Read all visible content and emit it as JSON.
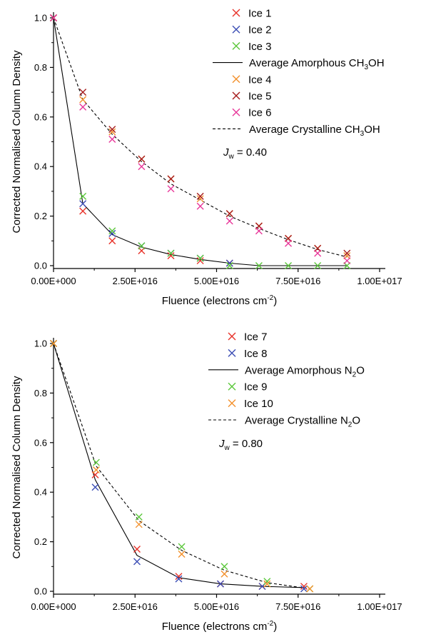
{
  "chart_data": [
    {
      "type": "scatter",
      "xlabel": "Fluence (electrons cm",
      "xlabel_sup": "-2",
      "xlabel_end": ")",
      "ylabel": "Corrected Normalised Column Density",
      "xlim": [
        0,
        1e+17
      ],
      "ylim": [
        0,
        1.0
      ],
      "x_ticks": [
        0,
        2.5e+16,
        5e+16,
        7.5e+16,
        1e+17
      ],
      "x_tick_labels": [
        "0.00E+000",
        "2.50E+016",
        "5.00E+016",
        "7.50E+016",
        "1.00E+017"
      ],
      "y_ticks": [
        0.0,
        0.2,
        0.4,
        0.6,
        0.8,
        1.0
      ],
      "y_tick_labels": [
        "0.0",
        "0.2",
        "0.4",
        "0.6",
        "0.8",
        "1.0"
      ],
      "grid": false,
      "legend_position": "top-right",
      "annotation": {
        "symbol": "J",
        "sub": "w",
        "text": " = 0.40"
      },
      "legend": [
        {
          "kind": "marker",
          "series": 0
        },
        {
          "kind": "marker",
          "series": 1
        },
        {
          "kind": "marker",
          "series": 2
        },
        {
          "kind": "line",
          "series": 6
        },
        {
          "kind": "marker",
          "series": 3
        },
        {
          "kind": "marker",
          "series": 4
        },
        {
          "kind": "marker",
          "series": 5
        },
        {
          "kind": "line",
          "series": 7
        }
      ],
      "series": [
        {
          "name": "Ice 1",
          "kind": "scatter",
          "color": "#e8332a",
          "x": [
            0,
            9000000000000000.0,
            1.8e+16,
            2.7e+16,
            3.6e+16,
            4.5e+16,
            5.4e+16
          ],
          "y": [
            1.0,
            0.22,
            0.1,
            0.06,
            0.04,
            0.02,
            0.01
          ]
        },
        {
          "name": "Ice 2",
          "kind": "scatter",
          "color": "#3d4fb5",
          "x": [
            0,
            9000000000000000.0,
            1.8e+16,
            2.7e+16,
            3.6e+16,
            4.5e+16,
            5.4e+16
          ],
          "y": [
            1.0,
            0.25,
            0.13,
            0.08,
            0.05,
            0.03,
            0.01
          ]
        },
        {
          "name": "Ice 3",
          "kind": "scatter",
          "color": "#5cc83c",
          "x": [
            0,
            9000000000000000.0,
            1.8e+16,
            2.7e+16,
            3.6e+16,
            4.5e+16,
            5.4e+16,
            6.3e+16,
            7.2e+16,
            8.1e+16,
            9e+16
          ],
          "y": [
            1.0,
            0.28,
            0.14,
            0.08,
            0.05,
            0.03,
            0.0,
            0.0,
            0.0,
            0.0,
            0.0
          ]
        },
        {
          "name": "Ice 4",
          "kind": "scatter",
          "color": "#f3912d",
          "x": [
            0,
            9000000000000000.0,
            1.8e+16,
            2.7e+16,
            3.6e+16,
            4.5e+16,
            5.4e+16,
            6.3e+16,
            7.2e+16,
            8.1e+16,
            9e+16
          ],
          "y": [
            1.0,
            0.67,
            0.54,
            0.43,
            0.35,
            0.27,
            0.21,
            0.16,
            0.11,
            0.07,
            0.04
          ]
        },
        {
          "name": "Ice 5",
          "kind": "scatter",
          "color": "#a61c1c",
          "x": [
            0,
            9000000000000000.0,
            1.8e+16,
            2.7e+16,
            3.6e+16,
            4.5e+16,
            5.4e+16,
            6.3e+16,
            7.2e+16,
            8.1e+16,
            9e+16
          ],
          "y": [
            1.0,
            0.7,
            0.55,
            0.43,
            0.35,
            0.28,
            0.21,
            0.16,
            0.11,
            0.07,
            0.05
          ]
        },
        {
          "name": "Ice 6",
          "kind": "scatter",
          "color": "#e8389a",
          "x": [
            0,
            9000000000000000.0,
            1.8e+16,
            2.7e+16,
            3.6e+16,
            4.5e+16,
            5.4e+16,
            6.3e+16,
            7.2e+16,
            8.1e+16,
            9e+16
          ],
          "y": [
            1.0,
            0.64,
            0.51,
            0.4,
            0.31,
            0.24,
            0.18,
            0.14,
            0.09,
            0.05,
            0.02
          ]
        },
        {
          "name": "Average Amorphous CH",
          "name_sub": "3",
          "name_end": "OH",
          "kind": "line",
          "dash": "solid",
          "color": "#000000",
          "x": [
            0,
            9000000000000000.0,
            1.8e+16,
            2.7e+16,
            3.6e+16,
            4.5e+16,
            5.4e+16,
            6.3e+16,
            7.2e+16,
            8.1e+16,
            9e+16
          ],
          "y": [
            1.0,
            0.25,
            0.125,
            0.075,
            0.045,
            0.025,
            0.01,
            0.0,
            0.0,
            0.0,
            0.0
          ]
        },
        {
          "name": "Average Crystalline CH",
          "name_sub": "3",
          "name_end": "OH",
          "kind": "line",
          "dash": "dashed",
          "color": "#000000",
          "x": [
            0,
            9000000000000000.0,
            1.8e+16,
            2.7e+16,
            3.6e+16,
            4.5e+16,
            5.4e+16,
            6.3e+16,
            7.2e+16,
            8.1e+16,
            9e+16
          ],
          "y": [
            1.0,
            0.67,
            0.53,
            0.42,
            0.33,
            0.265,
            0.2,
            0.15,
            0.105,
            0.065,
            0.035
          ]
        }
      ]
    },
    {
      "type": "scatter",
      "xlabel": "Fluence (electrons cm",
      "xlabel_sup": "-2",
      "xlabel_end": ")",
      "ylabel": "Corrected Normalised Column Density",
      "xlim": [
        0,
        1e+17
      ],
      "ylim": [
        0,
        1.0
      ],
      "x_ticks": [
        0,
        2.5e+16,
        5e+16,
        7.5e+16,
        1e+17
      ],
      "x_tick_labels": [
        "0.00E+000",
        "2.50E+016",
        "5.00E+016",
        "7.50E+016",
        "1.00E+017"
      ],
      "y_ticks": [
        0.0,
        0.2,
        0.4,
        0.6,
        0.8,
        1.0
      ],
      "y_tick_labels": [
        "0.0",
        "0.2",
        "0.4",
        "0.6",
        "0.8",
        "1.0"
      ],
      "grid": false,
      "legend_position": "top-right",
      "annotation": {
        "symbol": "J",
        "sub": "w",
        "text": " = 0.80"
      },
      "legend": [
        {
          "kind": "marker",
          "series": 0
        },
        {
          "kind": "marker",
          "series": 1
        },
        {
          "kind": "line",
          "series": 4
        },
        {
          "kind": "marker",
          "series": 2
        },
        {
          "kind": "marker",
          "series": 3
        },
        {
          "kind": "line",
          "series": 5
        }
      ],
      "series": [
        {
          "name": "Ice 7",
          "kind": "scatter",
          "color": "#e8332a",
          "x": [
            0,
            1.28e+16,
            2.56e+16,
            3.84e+16,
            5.12e+16,
            6.4e+16,
            7.68e+16
          ],
          "y": [
            1.0,
            0.47,
            0.17,
            0.06,
            0.03,
            0.02,
            0.02
          ]
        },
        {
          "name": "Ice 8",
          "kind": "scatter",
          "color": "#3d4fb5",
          "x": [
            0,
            1.28e+16,
            2.56e+16,
            3.84e+16,
            5.12e+16,
            6.4e+16,
            7.68e+16
          ],
          "y": [
            1.0,
            0.42,
            0.12,
            0.05,
            0.03,
            0.02,
            0.01
          ]
        },
        {
          "name": "Ice 9",
          "kind": "scatter",
          "color": "#5cc83c",
          "x": [
            0,
            1.31e+16,
            2.62e+16,
            3.93e+16,
            5.24e+16,
            6.55e+16,
            7.86e+16
          ],
          "y": [
            1.0,
            0.52,
            0.3,
            0.18,
            0.1,
            0.04,
            0.01
          ]
        },
        {
          "name": "Ice 10",
          "kind": "scatter",
          "color": "#f3912d",
          "x": [
            0,
            1.31e+16,
            2.62e+16,
            3.93e+16,
            5.24e+16,
            6.55e+16,
            7.86e+16
          ],
          "y": [
            1.0,
            0.49,
            0.27,
            0.15,
            0.07,
            0.03,
            0.01
          ]
        },
        {
          "name": "Average Amorphous N",
          "name_sub": "2",
          "name_end": "O",
          "kind": "line",
          "dash": "solid",
          "color": "#000000",
          "x": [
            0,
            1.28e+16,
            2.56e+16,
            3.84e+16,
            5.12e+16,
            6.4e+16,
            7.68e+16
          ],
          "y": [
            1.0,
            0.45,
            0.145,
            0.055,
            0.03,
            0.02,
            0.015
          ]
        },
        {
          "name": "Average Crystalline N",
          "name_sub": "2",
          "name_end": "O",
          "kind": "line",
          "dash": "dashed",
          "color": "#000000",
          "x": [
            0,
            1.31e+16,
            2.62e+16,
            3.93e+16,
            5.24e+16,
            6.55e+16,
            7.86e+16
          ],
          "y": [
            1.0,
            0.505,
            0.285,
            0.165,
            0.085,
            0.035,
            0.01
          ]
        }
      ]
    }
  ]
}
